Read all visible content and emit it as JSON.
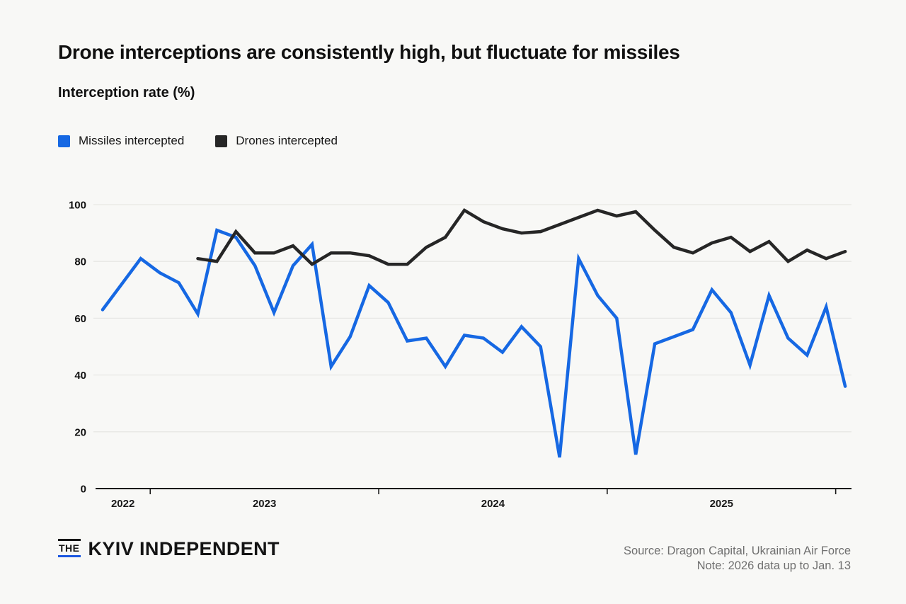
{
  "title": "Drone interceptions are consistently high, but fluctuate for missiles",
  "subtitle": "Interception rate (%)",
  "legend": {
    "missiles_label": "Missiles intercepted",
    "drones_label": "Drones intercepted"
  },
  "colors": {
    "missiles_blue": "#1668e3",
    "drones_black": "#262626",
    "background": "#f8f8f6",
    "gridline": "#e7e7e4",
    "axis": "#1a1a1a",
    "source_gray": "#6f6f6f",
    "logo_underline_blue": "#1b56e0"
  },
  "footer": {
    "logo_the": "THE",
    "logo_name": "KYIV INDEPENDENT",
    "source_line1": "Source: Dragon Capital, Ukrainian Air Force",
    "source_line2": "Note: 2026 data up to Jan. 13"
  },
  "chart_data": {
    "type": "line",
    "title": "Interception rate (%)",
    "x_unit": "month",
    "months": [
      "Oct 2022",
      "Nov 2022",
      "Dec 2022",
      "Jan 2023",
      "Feb 2023",
      "Mar 2023",
      "Apr 2023",
      "May 2023",
      "Jun 2023",
      "Jul 2023",
      "Aug 2023",
      "Sep 2023",
      "Oct 2023",
      "Nov 2023",
      "Dec 2023",
      "Jan 2024",
      "Feb 2024",
      "Mar 2024",
      "Apr 2024",
      "May 2024",
      "Jun 2024",
      "Jul 2024",
      "Aug 2024",
      "Sep 2024",
      "Oct 2024",
      "Nov 2024",
      "Dec 2024",
      "Jan 2025",
      "Feb 2025",
      "Mar 2025",
      "Apr 2025",
      "May 2025",
      "Jun 2025",
      "Jul 2025",
      "Aug 2025",
      "Sep 2025",
      "Oct 2025",
      "Nov 2025",
      "Dec 2025",
      "Jan 2026"
    ],
    "series": [
      {
        "name": "Missiles intercepted",
        "color": "#1668e3",
        "start_index": 0,
        "values": [
          63,
          72,
          81,
          76,
          72.5,
          61.5,
          91,
          88.5,
          78.5,
          62,
          78.5,
          86,
          43,
          53.5,
          71.5,
          65.5,
          52,
          53,
          43,
          54,
          53,
          48,
          57,
          50,
          11,
          81,
          68,
          60,
          12,
          51,
          53.5,
          56,
          70,
          62,
          43.5,
          68,
          53,
          47,
          64,
          36
        ]
      },
      {
        "name": "Drones intercepted",
        "color": "#262626",
        "start_index": 5,
        "values": [
          81,
          80,
          90.5,
          83,
          83,
          85.5,
          79,
          83,
          83,
          82,
          79,
          79,
          85,
          88.5,
          98,
          94,
          91.5,
          90,
          90.5,
          93,
          95.5,
          98,
          96,
          97.5,
          91,
          85,
          83,
          86.5,
          88.5,
          83.5,
          87,
          80,
          84,
          81,
          83.5
        ]
      }
    ],
    "y_ticks": [
      0,
      20,
      40,
      60,
      80,
      100
    ],
    "ylim": [
      0,
      100
    ],
    "x_tick_labels": [
      "2022",
      "2023",
      "2024",
      "2025"
    ],
    "x_tick_month_boundaries": [
      2.5,
      14.5,
      26.5,
      38.5
    ],
    "grid": true,
    "legend_position": "top-left"
  }
}
